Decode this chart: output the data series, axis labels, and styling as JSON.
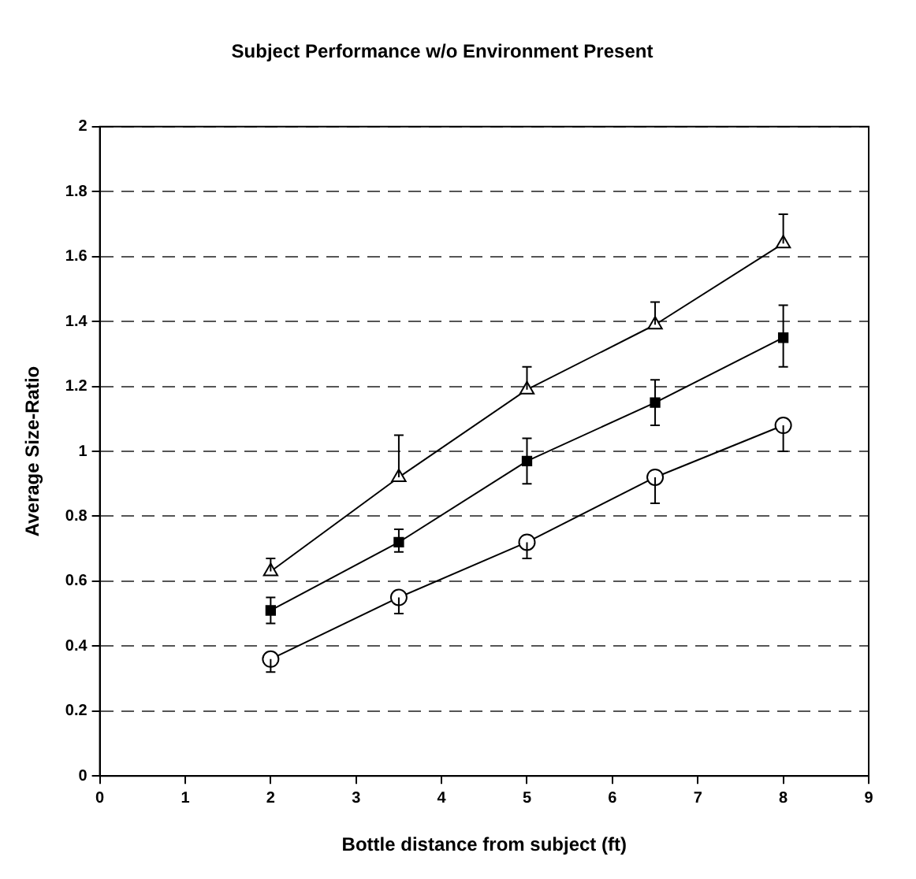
{
  "chart_data": {
    "type": "line",
    "title": "Subject Performance w/o Environment Present",
    "xlabel": "Bottle distance from subject (ft)",
    "ylabel": "Average Size-Ratio",
    "x": [
      2,
      3.5,
      5,
      6.5,
      8
    ],
    "series": [
      {
        "color": "#000000",
        "marker": "triangle",
        "values": [
          0.63,
          0.92,
          1.19,
          1.39,
          1.64
        ],
        "errors": [
          [
            0.63,
            0.67
          ],
          [
            0.92,
            1.05
          ],
          [
            1.19,
            1.26
          ],
          [
            1.39,
            1.46
          ],
          [
            1.64,
            1.73
          ]
        ]
      },
      {
        "color": "#000000",
        "marker": "square",
        "values": [
          0.51,
          0.72,
          0.97,
          1.15,
          1.35
        ],
        "errors": [
          [
            0.47,
            0.55
          ],
          [
            0.69,
            0.76
          ],
          [
            0.9,
            1.04
          ],
          [
            1.08,
            1.22
          ],
          [
            1.26,
            1.45
          ]
        ]
      },
      {
        "color": "#000000",
        "marker": "circle",
        "values": [
          0.36,
          0.55,
          0.72,
          0.92,
          1.08
        ],
        "errors": [
          [
            0.32,
            0.36
          ],
          [
            0.5,
            0.55
          ],
          [
            0.67,
            0.72
          ],
          [
            0.84,
            0.92
          ],
          [
            1.0,
            1.08
          ]
        ]
      }
    ],
    "xlim": [
      0,
      9
    ],
    "xticks": [
      0,
      1,
      2,
      3,
      4,
      5,
      6,
      7,
      8,
      9
    ],
    "ylim": [
      0,
      2
    ],
    "yticks": [
      0,
      0.2,
      0.4,
      0.6,
      0.8,
      1,
      1.2,
      1.4,
      1.6,
      1.8,
      2
    ],
    "grid": "y",
    "legend": false
  }
}
